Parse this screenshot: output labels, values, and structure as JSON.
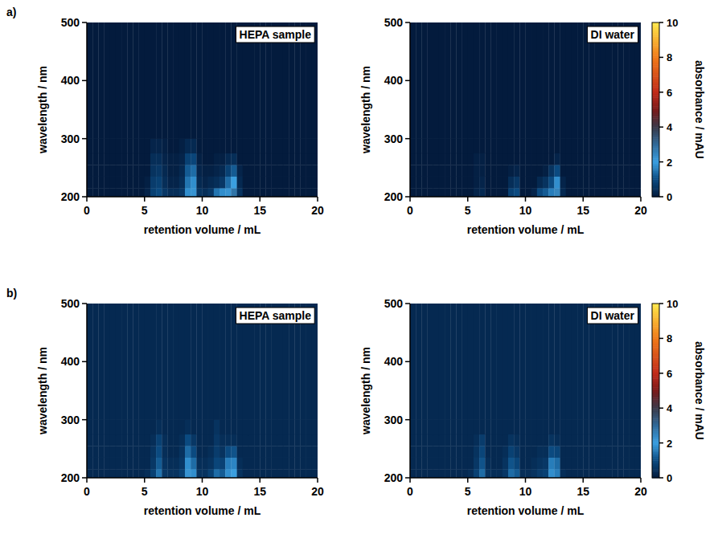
{
  "chart_data": [
    {
      "type": "heatmap",
      "panel": "a)",
      "title": "HEPA sample",
      "xlabel": "retention volume / mL",
      "ylabel": "wavelength / nm",
      "xlim": [
        0,
        20
      ],
      "ylim": [
        200,
        500
      ],
      "xticks": [
        0,
        5,
        10,
        15,
        20
      ],
      "yticks": [
        200,
        300,
        400,
        500
      ],
      "zlim": [
        0,
        10
      ],
      "x_edges": [
        0,
        0.5,
        1,
        1.5,
        2,
        2.5,
        3,
        3.5,
        4,
        4.5,
        5,
        5.5,
        6,
        6.5,
        7,
        7.5,
        8,
        8.5,
        9,
        9.5,
        10,
        10.5,
        11,
        11.5,
        12,
        12.5,
        13,
        13.5,
        14,
        14.5,
        15,
        15.5,
        16,
        16.5,
        17,
        17.5,
        18,
        18.5,
        19,
        19.5,
        20
      ],
      "y_edges": [
        200,
        215,
        235,
        255,
        275,
        300,
        500
      ],
      "z": [
        [
          0,
          0,
          0,
          0,
          0,
          0,
          0,
          0,
          0,
          0,
          0.2,
          0.8,
          1.0,
          0.6,
          0.4,
          0.4,
          0.6,
          1.8,
          2.2,
          0.5,
          0.4,
          0.6,
          1.5,
          1.8,
          2.2,
          2.8,
          0.5,
          0,
          0,
          0,
          0,
          0,
          0,
          0,
          0,
          0,
          0,
          0,
          0,
          0
        ],
        [
          0,
          0,
          0,
          0,
          0,
          0,
          0,
          0,
          0,
          0,
          0.1,
          0.7,
          0.8,
          0.4,
          0.2,
          0.2,
          0.4,
          1.5,
          1.8,
          0.3,
          0.2,
          0.3,
          0.4,
          0.6,
          1.4,
          2.0,
          0.3,
          0,
          0,
          0,
          0,
          0,
          0,
          0,
          0,
          0,
          0,
          0,
          0,
          0
        ],
        [
          0,
          0,
          0,
          0,
          0,
          0,
          0,
          0,
          0,
          0,
          0,
          0.5,
          0.6,
          0.3,
          0.1,
          0.1,
          0.3,
          1.2,
          1.4,
          0.2,
          0.1,
          0.1,
          0.2,
          0.3,
          0.8,
          1.2,
          0.2,
          0,
          0,
          0,
          0,
          0,
          0,
          0,
          0,
          0,
          0,
          0,
          0,
          0
        ],
        [
          0,
          0,
          0,
          0,
          0,
          0,
          0,
          0,
          0,
          0,
          0,
          0.4,
          0.4,
          0.2,
          0.1,
          0.1,
          0.2,
          0.8,
          0.9,
          0.1,
          0,
          0,
          0.1,
          0.1,
          0.3,
          0.4,
          0,
          0,
          0,
          0,
          0,
          0,
          0,
          0,
          0,
          0,
          0,
          0,
          0,
          0
        ],
        [
          0,
          0,
          0,
          0,
          0,
          0,
          0,
          0,
          0,
          0,
          0,
          0.2,
          0.2,
          0.1,
          0,
          0,
          0.1,
          0.3,
          0.3,
          0,
          0,
          0,
          0,
          0,
          0,
          0,
          0,
          0,
          0,
          0,
          0,
          0,
          0,
          0,
          0,
          0,
          0,
          0,
          0,
          0
        ],
        [
          0,
          0,
          0,
          0,
          0,
          0,
          0,
          0,
          0,
          0,
          0,
          0,
          0,
          0,
          0,
          0,
          0,
          0,
          0,
          0,
          0,
          0,
          0,
          0,
          0,
          0,
          0,
          0,
          0,
          0,
          0,
          0,
          0,
          0,
          0,
          0,
          0,
          0,
          0,
          0
        ]
      ]
    },
    {
      "type": "heatmap",
      "title": "DI water",
      "xlabel": "retention volume / mL",
      "ylabel": "wavelength / nm",
      "xlim": [
        0,
        20
      ],
      "ylim": [
        200,
        500
      ],
      "xticks": [
        0,
        5,
        10,
        15,
        20
      ],
      "yticks": [
        200,
        300,
        400,
        500
      ],
      "zlim": [
        0,
        10
      ],
      "colorbar": {
        "label": "absorbance / mAU",
        "ticks": [
          0,
          2,
          4,
          6,
          8,
          10
        ]
      },
      "x_edges": [
        0,
        0.5,
        1,
        1.5,
        2,
        2.5,
        3,
        3.5,
        4,
        4.5,
        5,
        5.5,
        6,
        6.5,
        7,
        7.5,
        8,
        8.5,
        9,
        9.5,
        10,
        10.5,
        11,
        11.5,
        12,
        12.5,
        13,
        13.5,
        14,
        14.5,
        15,
        15.5,
        16,
        16.5,
        17,
        17.5,
        18,
        18.5,
        19,
        19.5,
        20
      ],
      "y_edges": [
        200,
        215,
        235,
        255,
        275,
        300,
        500
      ],
      "z": [
        [
          0,
          0,
          0,
          0,
          0,
          0,
          0,
          0,
          0,
          0,
          0,
          0.2,
          0.3,
          0,
          0,
          0,
          0,
          0.8,
          1.0,
          0,
          0,
          0.2,
          1.0,
          1.2,
          1.6,
          2.5,
          0.3,
          0,
          0,
          0,
          0,
          0,
          0,
          0,
          0,
          0,
          0,
          0,
          0,
          0
        ],
        [
          0,
          0,
          0,
          0,
          0,
          0,
          0,
          0,
          0,
          0,
          0,
          0.1,
          0.2,
          0,
          0,
          0,
          0,
          0.4,
          0.6,
          0,
          0,
          0,
          0.3,
          0.5,
          1.0,
          1.8,
          0.2,
          0,
          0,
          0,
          0,
          0,
          0,
          0,
          0,
          0,
          0,
          0,
          0,
          0
        ],
        [
          0,
          0,
          0,
          0,
          0,
          0,
          0,
          0,
          0,
          0,
          0,
          0.1,
          0.1,
          0,
          0,
          0,
          0,
          0.1,
          0.2,
          0,
          0,
          0,
          0,
          0.1,
          0.5,
          1.0,
          0,
          0,
          0,
          0,
          0,
          0,
          0,
          0,
          0,
          0,
          0,
          0,
          0,
          0
        ],
        [
          0,
          0,
          0,
          0,
          0,
          0,
          0,
          0,
          0,
          0,
          0,
          0.1,
          0.1,
          0,
          0,
          0,
          0,
          0,
          0,
          0,
          0,
          0,
          0,
          0,
          0,
          0.2,
          0,
          0,
          0,
          0,
          0,
          0,
          0,
          0,
          0,
          0,
          0,
          0,
          0,
          0
        ],
        [
          0,
          0,
          0,
          0,
          0,
          0,
          0,
          0,
          0,
          0,
          0,
          0,
          0,
          0,
          0,
          0,
          0,
          0,
          0,
          0,
          0,
          0,
          0,
          0,
          0,
          0,
          0,
          0,
          0,
          0,
          0,
          0,
          0,
          0,
          0,
          0,
          0,
          0,
          0,
          0
        ],
        [
          0,
          0,
          0,
          0,
          0,
          0,
          0,
          0,
          0,
          0,
          0,
          0,
          0,
          0,
          0,
          0,
          0,
          0,
          0,
          0,
          0,
          0,
          0,
          0,
          0,
          0,
          0,
          0,
          0,
          0,
          0,
          0,
          0,
          0,
          0,
          0,
          0,
          0,
          0,
          0
        ]
      ]
    },
    {
      "type": "heatmap",
      "panel": "b)",
      "title": "HEPA sample",
      "xlabel": "retention volume / mL",
      "ylabel": "wavelength / nm",
      "xlim": [
        0,
        20
      ],
      "ylim": [
        200,
        500
      ],
      "xticks": [
        0,
        5,
        10,
        15,
        20
      ],
      "yticks": [
        200,
        300,
        400,
        500
      ],
      "zlim": [
        0,
        10
      ],
      "x_edges": [
        0,
        0.5,
        1,
        1.5,
        2,
        2.5,
        3,
        3.5,
        4,
        4.5,
        5,
        5.5,
        6,
        6.5,
        7,
        7.5,
        8,
        8.5,
        9,
        9.5,
        10,
        10.5,
        11,
        11.5,
        12,
        12.5,
        13,
        13.5,
        14,
        14.5,
        15,
        15.5,
        16,
        16.5,
        17,
        17.5,
        18,
        18.5,
        19,
        19.5,
        20
      ],
      "y_edges": [
        200,
        215,
        235,
        255,
        275,
        300,
        500
      ],
      "z": [
        [
          0.3,
          0.3,
          0.3,
          0.3,
          0.3,
          0.3,
          0.3,
          0.3,
          0.3,
          0.3,
          0.4,
          0.8,
          1.5,
          0.6,
          0.5,
          0.5,
          0.8,
          2.2,
          1.8,
          0.5,
          0.5,
          0.8,
          1.4,
          1.2,
          1.8,
          2.0,
          0.5,
          0.3,
          0.3,
          0.3,
          0.3,
          0.3,
          0.3,
          0.3,
          0.3,
          0.3,
          0.3,
          0.3,
          0.3,
          0.3
        ],
        [
          0.3,
          0.3,
          0.3,
          0.3,
          0.3,
          0.3,
          0.3,
          0.3,
          0.3,
          0.3,
          0.3,
          0.6,
          1.2,
          0.5,
          0.4,
          0.4,
          0.6,
          1.8,
          1.4,
          0.4,
          0.4,
          0.5,
          0.9,
          0.8,
          1.6,
          1.7,
          0.4,
          0.3,
          0.3,
          0.3,
          0.3,
          0.3,
          0.3,
          0.3,
          0.3,
          0.3,
          0.3,
          0.3,
          0.3,
          0.3
        ],
        [
          0.3,
          0.3,
          0.3,
          0.3,
          0.3,
          0.3,
          0.3,
          0.3,
          0.3,
          0.3,
          0.3,
          0.5,
          1.0,
          0.4,
          0.3,
          0.3,
          0.5,
          1.4,
          1.0,
          0.3,
          0.3,
          0.4,
          0.7,
          0.5,
          1.0,
          1.1,
          0.3,
          0.3,
          0.3,
          0.3,
          0.3,
          0.3,
          0.3,
          0.3,
          0.3,
          0.3,
          0.3,
          0.3,
          0.3,
          0.3
        ],
        [
          0.3,
          0.3,
          0.3,
          0.3,
          0.3,
          0.3,
          0.3,
          0.3,
          0.3,
          0.3,
          0.3,
          0.4,
          0.8,
          0.4,
          0.3,
          0.3,
          0.4,
          1.0,
          0.6,
          0.3,
          0.3,
          0.3,
          0.6,
          0.4,
          0.4,
          0.4,
          0.3,
          0.3,
          0.3,
          0.3,
          0.3,
          0.3,
          0.3,
          0.3,
          0.3,
          0.3,
          0.3,
          0.3,
          0.3,
          0.3
        ],
        [
          0.3,
          0.3,
          0.3,
          0.3,
          0.3,
          0.3,
          0.3,
          0.3,
          0.3,
          0.3,
          0.3,
          0.3,
          0.4,
          0.3,
          0.3,
          0.3,
          0.3,
          0.4,
          0.3,
          0.3,
          0.3,
          0.3,
          0.5,
          0.3,
          0.3,
          0.3,
          0.3,
          0.3,
          0.3,
          0.3,
          0.3,
          0.3,
          0.3,
          0.3,
          0.3,
          0.3,
          0.3,
          0.3,
          0.3,
          0.3
        ],
        [
          0.3,
          0.3,
          0.3,
          0.3,
          0.3,
          0.3,
          0.3,
          0.3,
          0.3,
          0.3,
          0.3,
          0.3,
          0.3,
          0.3,
          0.3,
          0.3,
          0.3,
          0.3,
          0.3,
          0.3,
          0.3,
          0.3,
          0.3,
          0.3,
          0.3,
          0.3,
          0.3,
          0.3,
          0.3,
          0.3,
          0.3,
          0.3,
          0.3,
          0.3,
          0.3,
          0.3,
          0.3,
          0.3,
          0.3,
          0.3
        ]
      ]
    },
    {
      "type": "heatmap",
      "title": "DI water",
      "xlabel": "retention volume / mL",
      "ylabel": "wavelength / nm",
      "xlim": [
        0,
        20
      ],
      "ylim": [
        200,
        500
      ],
      "xticks": [
        0,
        5,
        10,
        15,
        20
      ],
      "yticks": [
        200,
        300,
        400,
        500
      ],
      "zlim": [
        0,
        10
      ],
      "colorbar": {
        "label": "absorbance / mAU",
        "ticks": [
          0,
          2,
          4,
          6,
          8,
          10
        ]
      },
      "x_edges": [
        0,
        0.5,
        1,
        1.5,
        2,
        2.5,
        3,
        3.5,
        4,
        4.5,
        5,
        5.5,
        6,
        6.5,
        7,
        7.5,
        8,
        8.5,
        9,
        9.5,
        10,
        10.5,
        11,
        11.5,
        12,
        12.5,
        13,
        13.5,
        14,
        14.5,
        15,
        15.5,
        16,
        16.5,
        17,
        17.5,
        18,
        18.5,
        19,
        19.5,
        20
      ],
      "y_edges": [
        200,
        215,
        235,
        255,
        275,
        300,
        500
      ],
      "z": [
        [
          0.3,
          0.3,
          0.3,
          0.3,
          0.3,
          0.3,
          0.3,
          0.3,
          0.3,
          0.3,
          0.4,
          0.8,
          1.4,
          0.5,
          0.4,
          0.4,
          0.6,
          1.4,
          1.2,
          0.4,
          0.4,
          0.5,
          0.7,
          0.8,
          1.8,
          1.6,
          0.4,
          0.3,
          0.3,
          0.3,
          0.3,
          0.3,
          0.3,
          0.3,
          0.3,
          0.3,
          0.3,
          0.3,
          0.3,
          0.3
        ],
        [
          0.3,
          0.3,
          0.3,
          0.3,
          0.3,
          0.3,
          0.3,
          0.3,
          0.3,
          0.3,
          0.3,
          0.6,
          1.1,
          0.4,
          0.3,
          0.3,
          0.5,
          1.1,
          0.9,
          0.3,
          0.3,
          0.4,
          0.5,
          0.6,
          1.6,
          1.4,
          0.3,
          0.3,
          0.3,
          0.3,
          0.3,
          0.3,
          0.3,
          0.3,
          0.3,
          0.3,
          0.3,
          0.3,
          0.3,
          0.3
        ],
        [
          0.3,
          0.3,
          0.3,
          0.3,
          0.3,
          0.3,
          0.3,
          0.3,
          0.3,
          0.3,
          0.3,
          0.5,
          0.9,
          0.3,
          0.3,
          0.3,
          0.4,
          0.8,
          0.6,
          0.3,
          0.3,
          0.3,
          0.4,
          0.4,
          1.0,
          0.9,
          0.3,
          0.3,
          0.3,
          0.3,
          0.3,
          0.3,
          0.3,
          0.3,
          0.3,
          0.3,
          0.3,
          0.3,
          0.3,
          0.3
        ],
        [
          0.3,
          0.3,
          0.3,
          0.3,
          0.3,
          0.3,
          0.3,
          0.3,
          0.3,
          0.3,
          0.3,
          0.4,
          0.7,
          0.3,
          0.3,
          0.3,
          0.3,
          0.5,
          0.4,
          0.3,
          0.3,
          0.3,
          0.3,
          0.3,
          0.5,
          0.4,
          0.3,
          0.3,
          0.3,
          0.3,
          0.3,
          0.3,
          0.3,
          0.3,
          0.3,
          0.3,
          0.3,
          0.3,
          0.3,
          0.3
        ],
        [
          0.3,
          0.3,
          0.3,
          0.3,
          0.3,
          0.3,
          0.3,
          0.3,
          0.3,
          0.3,
          0.3,
          0.3,
          0.3,
          0.3,
          0.3,
          0.3,
          0.3,
          0.3,
          0.3,
          0.3,
          0.3,
          0.3,
          0.3,
          0.3,
          0.3,
          0.3,
          0.3,
          0.3,
          0.3,
          0.3,
          0.3,
          0.3,
          0.3,
          0.3,
          0.3,
          0.3,
          0.3,
          0.3,
          0.3,
          0.3
        ],
        [
          0.3,
          0.3,
          0.3,
          0.3,
          0.3,
          0.3,
          0.3,
          0.3,
          0.3,
          0.3,
          0.3,
          0.3,
          0.3,
          0.3,
          0.3,
          0.3,
          0.3,
          0.3,
          0.3,
          0.3,
          0.3,
          0.3,
          0.3,
          0.3,
          0.3,
          0.3,
          0.3,
          0.3,
          0.3,
          0.3,
          0.3,
          0.3,
          0.3,
          0.3,
          0.3,
          0.3,
          0.3,
          0.3,
          0.3,
          0.3
        ]
      ]
    }
  ]
}
